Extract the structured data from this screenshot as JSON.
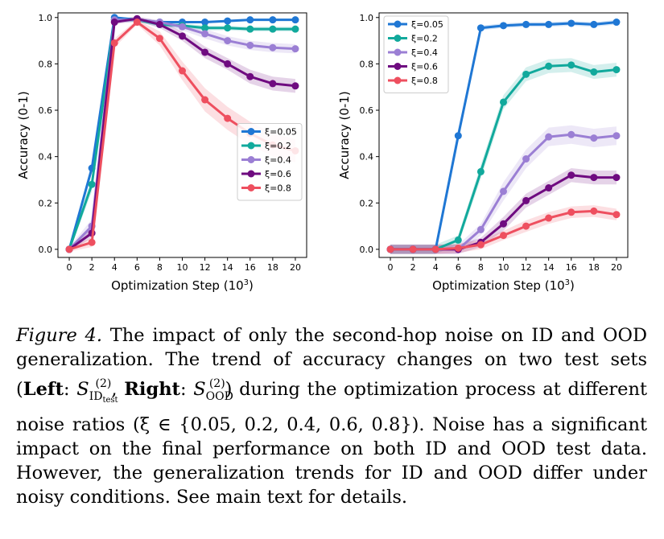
{
  "chart_data": [
    {
      "type": "line",
      "panel": "left",
      "xlabel": "Optimization Step (10",
      "xlabel_sup": "3",
      "xlabel_tail": ")",
      "ylabel": "Accuracy (0-1)",
      "x": [
        0,
        2,
        4,
        6,
        8,
        10,
        12,
        14,
        16,
        18,
        20
      ],
      "xticks": [
        "0",
        "2",
        "4",
        "6",
        "8",
        "10",
        "12",
        "14",
        "16",
        "18",
        "20"
      ],
      "yticks": [
        "0.0",
        "0.2",
        "0.4",
        "0.6",
        "0.8",
        "1.0"
      ],
      "ylim": [
        -0.035,
        1.02
      ],
      "xlim": [
        -1,
        21
      ],
      "legend_position": "lower right",
      "series": [
        {
          "name": "ξ=0.05",
          "color": "#1f77d4",
          "values": [
            0.0,
            0.35,
            1.0,
            0.99,
            0.98,
            0.98,
            0.98,
            0.985,
            0.99,
            0.99,
            0.99
          ],
          "band": [
            0.01,
            0.02,
            0.005,
            0.005,
            0.005,
            0.005,
            0.005,
            0.005,
            0.005,
            0.005,
            0.005
          ]
        },
        {
          "name": "ξ=0.2",
          "color": "#11a99c",
          "values": [
            0.0,
            0.28,
            0.99,
            0.99,
            0.97,
            0.965,
            0.955,
            0.955,
            0.95,
            0.95,
            0.95
          ],
          "band": [
            0.01,
            0.03,
            0.01,
            0.01,
            0.01,
            0.01,
            0.01,
            0.01,
            0.01,
            0.01,
            0.01
          ]
        },
        {
          "name": "ξ=0.4",
          "color": "#9b7fd4",
          "values": [
            0.0,
            0.1,
            0.99,
            0.99,
            0.98,
            0.96,
            0.93,
            0.9,
            0.88,
            0.87,
            0.865
          ],
          "band": [
            0.01,
            0.03,
            0.01,
            0.01,
            0.01,
            0.015,
            0.02,
            0.02,
            0.02,
            0.02,
            0.02
          ]
        },
        {
          "name": "ξ=0.6",
          "color": "#6f0b80",
          "values": [
            0.0,
            0.07,
            0.98,
            0.995,
            0.97,
            0.92,
            0.85,
            0.8,
            0.745,
            0.715,
            0.705
          ],
          "band": [
            0.01,
            0.02,
            0.01,
            0.01,
            0.015,
            0.02,
            0.025,
            0.025,
            0.03,
            0.03,
            0.03
          ]
        },
        {
          "name": "ξ=0.8",
          "color": "#ee4f5f",
          "values": [
            0.0,
            0.03,
            0.89,
            0.98,
            0.91,
            0.77,
            0.645,
            0.565,
            0.5,
            0.45,
            0.425
          ],
          "band": [
            0.01,
            0.02,
            0.02,
            0.01,
            0.03,
            0.04,
            0.05,
            0.05,
            0.05,
            0.05,
            0.05
          ]
        }
      ]
    },
    {
      "type": "line",
      "panel": "right",
      "xlabel": "Optimization Step (10",
      "xlabel_sup": "3",
      "xlabel_tail": ")",
      "ylabel": "Accuracy (0-1)",
      "x": [
        0,
        2,
        4,
        6,
        8,
        10,
        12,
        14,
        16,
        18,
        20
      ],
      "xticks": [
        "0",
        "2",
        "4",
        "6",
        "8",
        "10",
        "12",
        "14",
        "16",
        "18",
        "20"
      ],
      "yticks": [
        "0.0",
        "0.2",
        "0.4",
        "0.6",
        "0.8",
        "1.0"
      ],
      "ylim": [
        -0.035,
        1.02
      ],
      "xlim": [
        -1,
        21
      ],
      "legend_position": "upper left",
      "series": [
        {
          "name": "ξ=0.05",
          "color": "#1f77d4",
          "values": [
            0.0,
            0.0,
            0.0,
            0.49,
            0.955,
            0.965,
            0.97,
            0.97,
            0.975,
            0.97,
            0.98
          ],
          "band": [
            0.02,
            0.02,
            0.02,
            0.03,
            0.01,
            0.01,
            0.01,
            0.01,
            0.01,
            0.01,
            0.01
          ]
        },
        {
          "name": "ξ=0.2",
          "color": "#11a99c",
          "values": [
            0.0,
            0.0,
            0.0,
            0.04,
            0.335,
            0.635,
            0.755,
            0.79,
            0.795,
            0.765,
            0.775
          ],
          "band": [
            0.02,
            0.02,
            0.02,
            0.02,
            0.03,
            0.03,
            0.03,
            0.03,
            0.03,
            0.03,
            0.03
          ]
        },
        {
          "name": "ξ=0.4",
          "color": "#9b7fd4",
          "values": [
            0.0,
            0.0,
            0.0,
            0.0,
            0.085,
            0.25,
            0.39,
            0.485,
            0.495,
            0.48,
            0.49
          ],
          "band": [
            0.02,
            0.02,
            0.02,
            0.02,
            0.025,
            0.04,
            0.04,
            0.04,
            0.04,
            0.04,
            0.04
          ]
        },
        {
          "name": "ξ=0.6",
          "color": "#6f0b80",
          "values": [
            0.0,
            0.0,
            0.0,
            0.0,
            0.03,
            0.11,
            0.21,
            0.265,
            0.32,
            0.31,
            0.31
          ],
          "band": [
            0.02,
            0.02,
            0.02,
            0.02,
            0.02,
            0.03,
            0.03,
            0.03,
            0.03,
            0.03,
            0.03
          ]
        },
        {
          "name": "ξ=0.8",
          "color": "#ee4f5f",
          "values": [
            0.0,
            0.0,
            0.0,
            0.005,
            0.02,
            0.06,
            0.1,
            0.135,
            0.16,
            0.165,
            0.15
          ],
          "band": [
            0.02,
            0.02,
            0.02,
            0.02,
            0.02,
            0.02,
            0.025,
            0.025,
            0.025,
            0.025,
            0.025
          ]
        }
      ]
    }
  ],
  "caption": {
    "figure_label": "Figure 4.",
    "text_1": " The impact of only the second-hop noise on ID and OOD generalization. The trend of accuracy changes on two test sets (",
    "left_word": "Left",
    "colon_1": ": ",
    "sym_S": "S",
    "sup_2": "(2)",
    "sub_id": "ID",
    "sub_test": "test",
    "comma_1": ", ",
    "right_word": "Right",
    "colon_2": ": ",
    "sub_ood": "OOD",
    "text_2": ") during the optimization process at different noise ratios (ξ ∈ {0.05, 0.2, 0.4, 0.6, 0.8}). Noise has a significant impact on the final performance on both ID and OOD test data. However, the generalization trends for ID and OOD differ under noisy conditions. See main text for details."
  }
}
